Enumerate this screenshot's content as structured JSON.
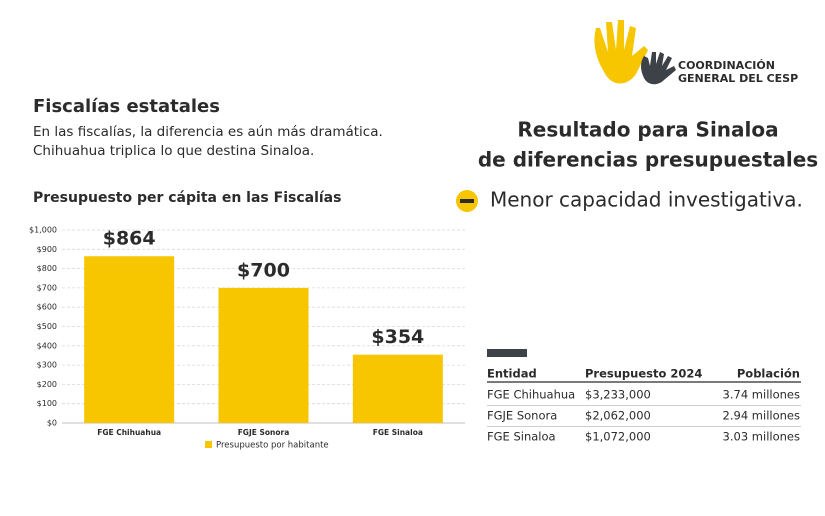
{
  "logo": {
    "lines": [
      "COORDINACIÓN",
      "GENERAL DEL CESP"
    ]
  },
  "section": {
    "title": "Fiscalías estatales",
    "lines": [
      "En las fiscalías, la diferencia es aún más dramática.",
      "Chihuahua triplica lo que destina Sinaloa."
    ]
  },
  "result": {
    "lines": [
      "Resultado para Sinaloa",
      "de diferencias presupuestales"
    ],
    "item": "Menor capacidad investigativa."
  },
  "table": {
    "header": [
      "Entidad",
      "Presupuesto 2024",
      "Población"
    ],
    "rows": [
      [
        "FGE Chihuahua",
        "$3,233,000",
        "3.74 millones"
      ],
      [
        "FGJE Sonora",
        "$2,062,000",
        "2.94 millones"
      ],
      [
        "FGE Sinaloa",
        "$1,072,000",
        "3.03 millones"
      ]
    ]
  },
  "chart_data": {
    "type": "bar",
    "title": "Presupuesto per cápita en las Fiscalías",
    "categories": [
      "FGE Chihuahua",
      "FGJE Sonora",
      "FGE Sinaloa"
    ],
    "series": [
      {
        "name": "Presupuesto por habitante",
        "color": "#f7c600",
        "values": [
          864,
          700,
          354
        ],
        "value_labels": [
          "$864",
          "$700",
          "$354"
        ]
      }
    ],
    "ylim": [
      0,
      1000
    ],
    "yticks": [
      {
        "value": 0,
        "label": "$0"
      },
      {
        "value": 100,
        "label": "$100"
      },
      {
        "value": 200,
        "label": "$200"
      },
      {
        "value": 300,
        "label": "$300"
      },
      {
        "value": 400,
        "label": "$400"
      },
      {
        "value": 500,
        "label": "$500"
      },
      {
        "value": 600,
        "label": "$600"
      },
      {
        "value": 700,
        "label": "$700"
      },
      {
        "value": 800,
        "label": "$800"
      },
      {
        "value": 900,
        "label": "$900"
      },
      {
        "value": 1000,
        "label": "$1,000"
      }
    ],
    "grid": true
  }
}
